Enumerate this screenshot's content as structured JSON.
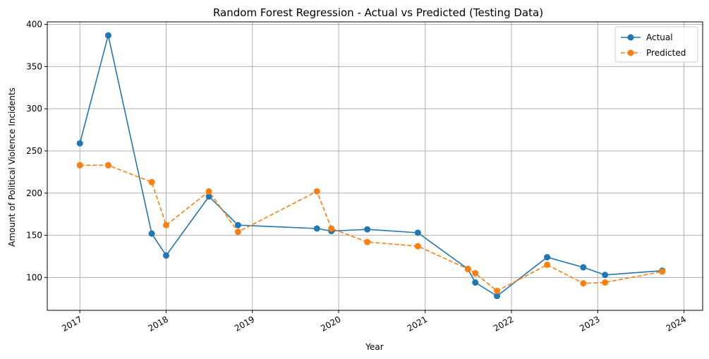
{
  "chart_data": {
    "type": "line",
    "title": "Random Forest Regression - Actual vs Predicted (Testing Data)",
    "xlabel": "Year",
    "ylabel": "Amount of Political Violence Incidents",
    "x_ticks": [
      "2017",
      "2018",
      "2019",
      "2020",
      "2021",
      "2022",
      "2023",
      "2024"
    ],
    "y_ticks": [
      100,
      150,
      200,
      250,
      300,
      350,
      400
    ],
    "xlim": [
      "2016-08-16",
      "2024-03-20"
    ],
    "ylim": [
      61,
      403
    ],
    "grid": true,
    "legend_position": "top-right",
    "x": [
      "2017-01-01",
      "2017-05-01",
      "2017-11-01",
      "2018-01-01",
      "2018-07-01",
      "2018-11-01",
      "2019-10-01",
      "2019-12-01",
      "2020-05-01",
      "2020-12-01",
      "2021-07-01",
      "2021-08-01",
      "2021-11-01",
      "2022-06-01",
      "2022-11-01",
      "2023-02-01",
      "2023-10-01"
    ],
    "series": [
      {
        "name": "Actual",
        "color": "#1f77b4",
        "line_style": "solid",
        "values": [
          259,
          387,
          152,
          126,
          196,
          162,
          158,
          155,
          157,
          153,
          110,
          94,
          78,
          124,
          112,
          103,
          108
        ]
      },
      {
        "name": "Predicted",
        "color": "#ff7f0e",
        "line_style": "dashed",
        "values": [
          233,
          233,
          213,
          162,
          202,
          154,
          202,
          158,
          142,
          137,
          110,
          105,
          84,
          115,
          93,
          94,
          107
        ]
      }
    ]
  }
}
